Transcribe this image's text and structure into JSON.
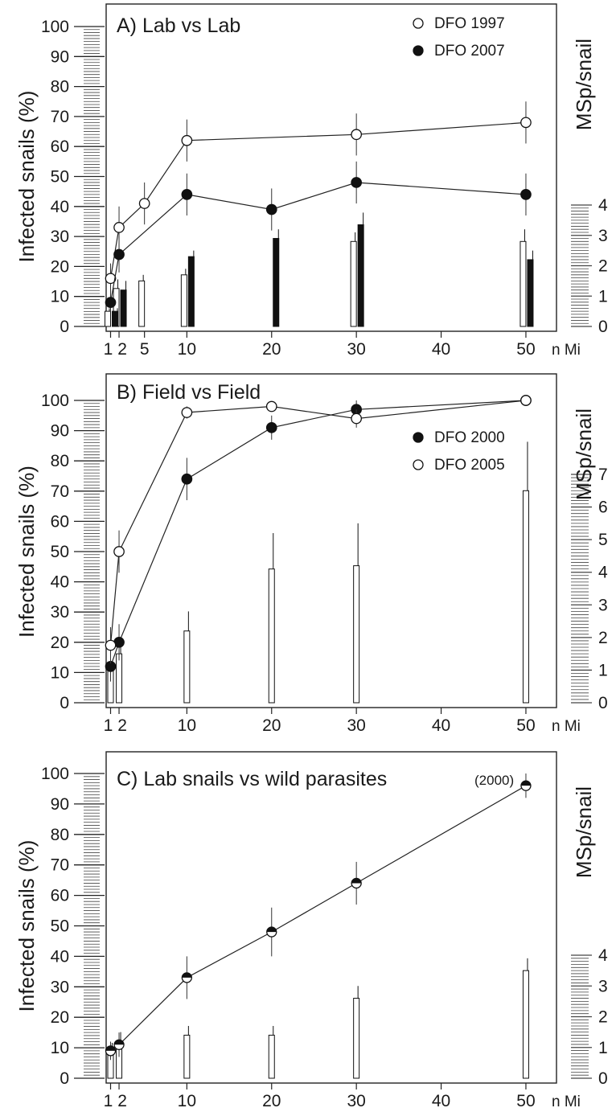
{
  "chart_data": [
    {
      "type": "line",
      "title": "A) Lab vs Lab",
      "title_suffix": "",
      "ylabel": "Infected snails (%)",
      "y2label": "MSp/snail",
      "xunit": "n Mi",
      "ylim": [
        0,
        100
      ],
      "yticks": [
        0,
        10,
        20,
        30,
        40,
        50,
        60,
        70,
        80,
        90,
        100
      ],
      "y2lim": [
        0,
        4
      ],
      "y2ticks": [
        0,
        1,
        2,
        3,
        4
      ],
      "xlim": [
        0,
        51
      ],
      "xticks": [
        1,
        2,
        5,
        10,
        20,
        30,
        40,
        50
      ],
      "legend_position": "top-right",
      "series": [
        {
          "name": "DFO 1997",
          "marker": "open",
          "x": [
            1,
            2,
            5,
            10,
            30,
            50
          ],
          "y": [
            16,
            33,
            41,
            62,
            64,
            68
          ],
          "err": [
            5,
            7,
            7,
            7,
            7,
            7
          ]
        },
        {
          "name": "DFO 2007",
          "marker": "filled",
          "x": [
            1,
            2,
            10,
            20,
            30,
            50
          ],
          "y": [
            8,
            24,
            44,
            39,
            48,
            44
          ],
          "err": [
            3,
            6,
            7,
            7,
            7,
            7
          ]
        }
      ],
      "bars": [
        {
          "name": "DFO 1997",
          "fill": "open",
          "x": [
            1,
            2,
            5,
            10,
            30,
            50
          ],
          "y": [
            0.5,
            1.25,
            1.5,
            1.7,
            2.8,
            2.8
          ],
          "err": [
            0.1,
            0.3,
            0.2,
            0.2,
            0.3,
            0.4
          ]
        },
        {
          "name": "DFO 2007",
          "fill": "filled",
          "x": [
            1,
            2,
            10,
            20,
            30,
            50
          ],
          "y": [
            0.5,
            1.2,
            2.3,
            2.9,
            3.35,
            2.2
          ],
          "err": [
            0.1,
            0.3,
            0.2,
            0.3,
            0.4,
            0.3
          ]
        }
      ]
    },
    {
      "type": "line",
      "title": "B) Field vs Field",
      "title_suffix": "",
      "ylabel": "Infected snails (%)",
      "y2label": "MSp/snail",
      "xunit": "n Mi",
      "ylim": [
        0,
        100
      ],
      "yticks": [
        0,
        10,
        20,
        30,
        40,
        50,
        60,
        70,
        80,
        90,
        100
      ],
      "y2lim": [
        0,
        7
      ],
      "y2ticks": [
        0,
        1,
        2,
        3,
        4,
        5,
        6,
        7
      ],
      "xlim": [
        0,
        51
      ],
      "xticks": [
        1,
        2,
        10,
        20,
        30,
        40,
        50
      ],
      "legend_position": "right",
      "series": [
        {
          "name": "DFO 2000",
          "marker": "filled",
          "x": [
            1,
            2,
            10,
            20,
            30,
            50
          ],
          "y": [
            12,
            20,
            74,
            91,
            97,
            100
          ],
          "err": [
            5,
            6,
            7,
            4,
            3,
            1
          ]
        },
        {
          "name": "DFO 2005",
          "marker": "open",
          "x": [
            1,
            2,
            10,
            20,
            30,
            50
          ],
          "y": [
            19,
            50,
            96,
            98,
            94,
            100
          ],
          "err": [
            6,
            7,
            2,
            1,
            3,
            1
          ]
        }
      ],
      "bars": [
        {
          "name": "",
          "fill": "open",
          "x": [
            1,
            2,
            10,
            20,
            30,
            50
          ],
          "y": [
            1.0,
            1.5,
            2.2,
            4.1,
            4.2,
            6.5
          ],
          "err": [
            0.2,
            0.4,
            0.6,
            1.1,
            1.3,
            1.5
          ]
        }
      ]
    },
    {
      "type": "line",
      "title": "C) Lab snails vs wild parasites",
      "title_suffix": "(2000)",
      "ylabel": "Infected snails (%)",
      "y2label": "MSp/snail",
      "xunit": "n Mi",
      "ylim": [
        0,
        100
      ],
      "yticks": [
        0,
        10,
        20,
        30,
        40,
        50,
        60,
        70,
        80,
        90,
        100
      ],
      "y2lim": [
        0,
        4
      ],
      "y2ticks": [
        0,
        1,
        2,
        3,
        4
      ],
      "xlim": [
        0,
        51
      ],
      "xticks": [
        1,
        2,
        10,
        20,
        30,
        40,
        50
      ],
      "legend_position": "none",
      "series": [
        {
          "name": "",
          "marker": "half",
          "x": [
            1,
            2,
            10,
            20,
            30,
            50
          ],
          "y": [
            9,
            11,
            33,
            48,
            64,
            96
          ],
          "err": [
            3,
            4,
            7,
            8,
            7,
            4
          ]
        }
      ],
      "bars": [
        {
          "name": "",
          "fill": "open",
          "x": [
            1,
            2,
            10,
            20,
            30,
            50
          ],
          "y": [
            0.85,
            1.1,
            1.4,
            1.4,
            2.6,
            3.5
          ],
          "err": [
            0.3,
            0.4,
            0.3,
            0.3,
            0.4,
            0.4
          ]
        }
      ]
    }
  ]
}
